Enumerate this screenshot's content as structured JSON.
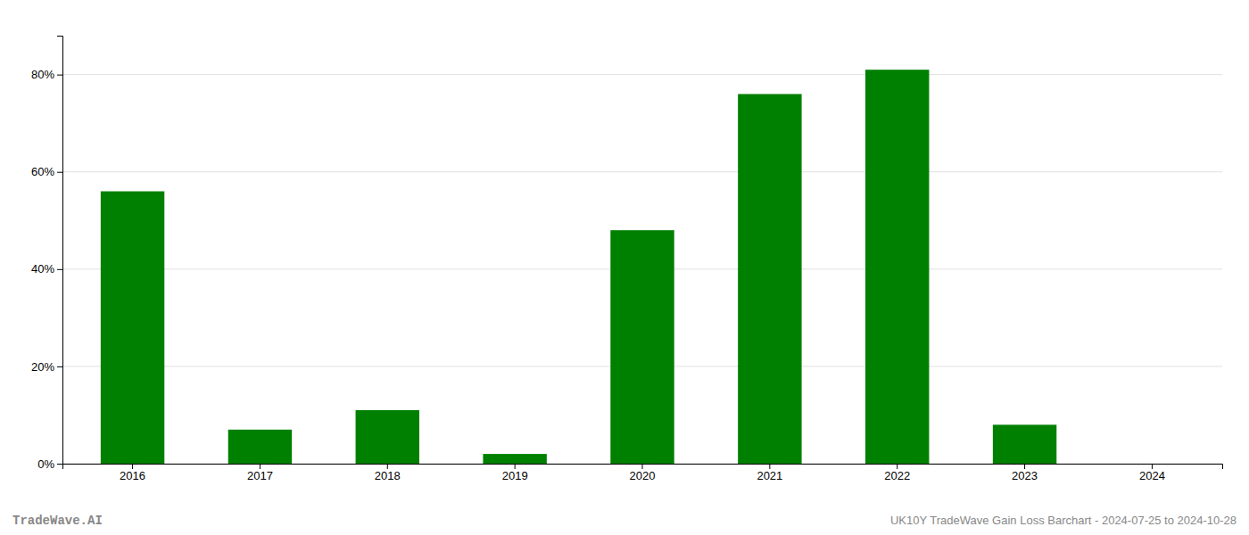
{
  "chart_data": {
    "type": "bar",
    "categories": [
      "2016",
      "2017",
      "2018",
      "2019",
      "2020",
      "2021",
      "2022",
      "2023",
      "2024"
    ],
    "values": [
      56.0,
      7.0,
      11.0,
      2.0,
      48.0,
      76.0,
      81.0,
      8.0,
      0.0
    ],
    "color": "#008000",
    "ylim": [
      0,
      88
    ],
    "yticks": [
      {
        "value": 0,
        "label": "0%"
      },
      {
        "value": 20,
        "label": "20%"
      },
      {
        "value": 40,
        "label": "40%"
      },
      {
        "value": 60,
        "label": "60%"
      },
      {
        "value": 80,
        "label": "80%"
      }
    ],
    "grid": true,
    "annotations": [
      "TradeWave.AI",
      "UK10Y TradeWave Gain Loss Barchart - 2024-07-25 to 2024-10-28"
    ]
  }
}
